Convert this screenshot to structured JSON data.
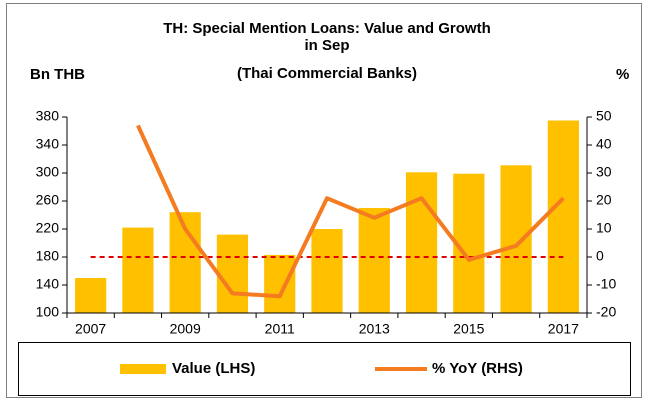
{
  "chart_data": {
    "type": "bar",
    "title": [
      "TH: Special Mention Loans: Value and Growth",
      "in Sep"
    ],
    "subtitle": "(Thai Commercial Banks)",
    "ylabel": "Bn THB",
    "y2label": "%",
    "categories": [
      "2007",
      null,
      "2009",
      null,
      "2011",
      null,
      "2013",
      null,
      "2015",
      null,
      "2017"
    ],
    "series": [
      {
        "name": "Value (LHS)",
        "type": "bar",
        "color": "#ffc000",
        "values": [
          150,
          222,
          244,
          212,
          183,
          220,
          250,
          301,
          299,
          311,
          375
        ]
      },
      {
        "name": "% YoY (RHS)",
        "type": "line",
        "axis": "y2",
        "color": "#f47b20",
        "values": [
          null,
          47,
          10,
          -13,
          -14,
          21,
          14,
          21,
          -1,
          4,
          21
        ]
      }
    ],
    "reference_line": {
      "value": 0,
      "axis": "y2",
      "color": "#e00000"
    },
    "ylim": [
      100,
      380
    ],
    "yticks": [
      100,
      140,
      180,
      220,
      260,
      300,
      340,
      380
    ],
    "y2lim": [
      -20,
      50
    ],
    "y2ticks": [
      -20,
      -10,
      0,
      10,
      20,
      30,
      40,
      50
    ],
    "legend": "bottom"
  }
}
